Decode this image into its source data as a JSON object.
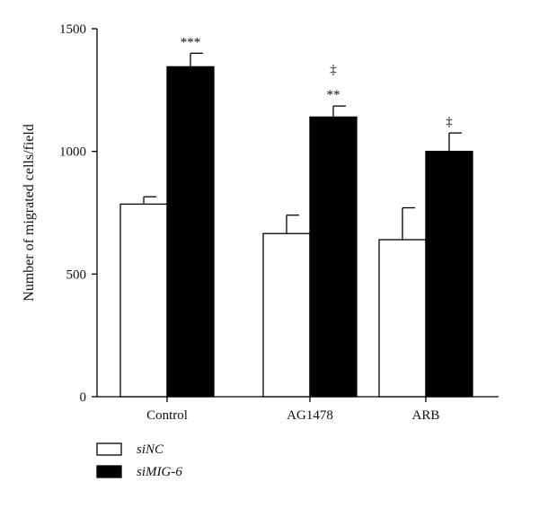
{
  "chart_data": {
    "type": "bar",
    "ylabel": "Number of migrated cells/field",
    "ylim": [
      0,
      1500
    ],
    "yticks": [
      0,
      500,
      1000,
      1500
    ],
    "categories": [
      "Control",
      "AG1478",
      "ARB"
    ],
    "series": [
      {
        "name": "siNC",
        "color": "#ffffff",
        "values": [
          785,
          665,
          640
        ],
        "errors": [
          30,
          75,
          130
        ]
      },
      {
        "name": "siMIG-6",
        "color": "#000000",
        "values": [
          1345,
          1140,
          1000
        ],
        "errors": [
          55,
          45,
          75
        ]
      }
    ],
    "annotations": [
      {
        "category": 0,
        "series": 1,
        "lines": [
          "***"
        ]
      },
      {
        "category": 1,
        "series": 1,
        "lines": [
          "‡",
          "**"
        ]
      },
      {
        "category": 2,
        "series": 1,
        "lines": [
          "‡"
        ]
      }
    ],
    "legend": {
      "placement": "bottom-left"
    }
  }
}
